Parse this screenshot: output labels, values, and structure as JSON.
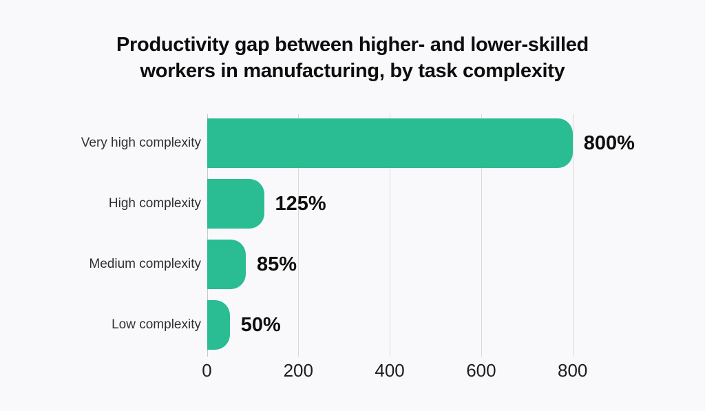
{
  "title": {
    "line1": "Productivity gap between higher- and lower-skilled",
    "line2": "workers in manufacturing, by task complexity"
  },
  "chart_data": {
    "type": "bar",
    "orientation": "horizontal",
    "title": "Productivity gap between higher- and lower-skilled workers in manufacturing, by task complexity",
    "categories": [
      "Very high complexity",
      "High complexity",
      "Medium complexity",
      "Low complexity"
    ],
    "values": [
      800,
      125,
      85,
      50
    ],
    "value_labels": [
      "800%",
      "125%",
      "85%",
      "50%"
    ],
    "xlabel": "",
    "ylabel": "",
    "xlim": [
      0,
      800
    ],
    "xticks": [
      0,
      200,
      400,
      600,
      800
    ],
    "xtick_labels": [
      "0",
      "200",
      "400",
      "600",
      "800"
    ],
    "grid": "vertical-only",
    "legend": "none",
    "colors": {
      "bar": "#2abc93",
      "background": "#f9f9fb",
      "gridline": "#d9d9d9",
      "zero_line": "#c9c9c9",
      "title_text": "#0d0d0d",
      "category_text": "#2f2f2f",
      "value_text": "#0e0e0e",
      "tick_text": "#1d1d1d"
    }
  }
}
